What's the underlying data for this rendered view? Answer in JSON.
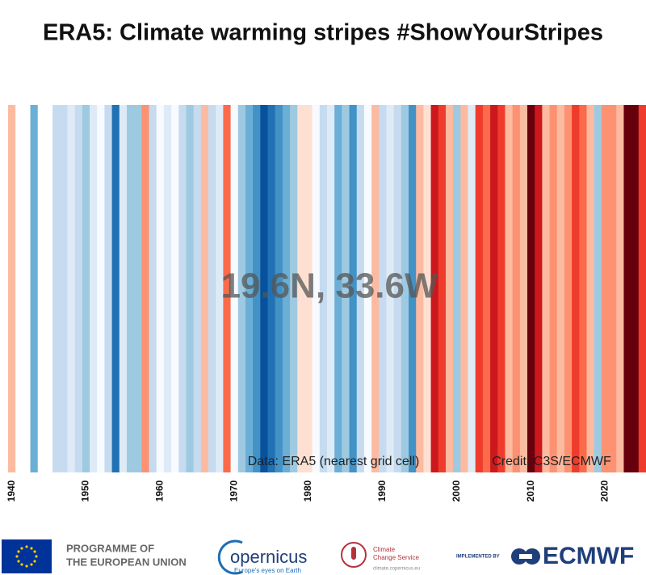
{
  "chart_data": {
    "type": "stripes",
    "title": "ERA5: Climate warming stripes #ShowYourStripes",
    "annotation": "19.6N, 33.6W",
    "source": "Data: ERA5 (nearest grid cell)",
    "credit": "Credit: C3S/ECMWF",
    "x": [
      1940,
      1941,
      1942,
      1943,
      1944,
      1945,
      1946,
      1947,
      1948,
      1949,
      1950,
      1951,
      1952,
      1953,
      1954,
      1955,
      1956,
      1957,
      1958,
      1959,
      1960,
      1961,
      1962,
      1963,
      1964,
      1965,
      1966,
      1967,
      1968,
      1969,
      1970,
      1971,
      1972,
      1973,
      1974,
      1975,
      1976,
      1977,
      1978,
      1979,
      1980,
      1981,
      1982,
      1983,
      1984,
      1985,
      1986,
      1987,
      1988,
      1989,
      1990,
      1991,
      1992,
      1993,
      1994,
      1995,
      1996,
      1997,
      1998,
      1999,
      2000,
      2001,
      2002,
      2003,
      2004,
      2005,
      2006,
      2007,
      2008,
      2009,
      2010,
      2011,
      2012,
      2013,
      2014,
      2015,
      2016,
      2017,
      2018,
      2019,
      2020,
      2021,
      2022,
      2023,
      2024,
      2025
    ],
    "colors": [
      "#fcbba1",
      "#ffffff",
      "#ffffff",
      "#6baed6",
      "#ffffff",
      "#ffffff",
      "#c6dbef",
      "#c6dbef",
      "#deebf7",
      "#c6dbef",
      "#9ecae1",
      "#deebf7",
      "#f7fbff",
      "#c6dbef",
      "#2171b5",
      "#deebf7",
      "#9ecae1",
      "#9ecae1",
      "#fc9272",
      "#c6dbef",
      "#f7fbff",
      "#deebf7",
      "#f7fbff",
      "#c6dbef",
      "#9ecae1",
      "#c6dbef",
      "#fcbba1",
      "#c6dbef",
      "#deebf7",
      "#fb6a4a",
      "#f7fbff",
      "#9ecae1",
      "#6baed6",
      "#4292c6",
      "#08519c",
      "#2171b5",
      "#4292c6",
      "#6baed6",
      "#9ecae1",
      "#fee0d2",
      "#fee0d2",
      "#f7fbff",
      "#c6dbef",
      "#deebf7",
      "#6baed6",
      "#9ecae1",
      "#4292c6",
      "#c6dbef",
      "#f7fbff",
      "#fcbba1",
      "#c6dbef",
      "#deebf7",
      "#c6dbef",
      "#9ecae1",
      "#4292c6",
      "#fcbba1",
      "#fee0d2",
      "#cb181d",
      "#ef3b2c",
      "#fcbba1",
      "#9ecae1",
      "#fcbba1",
      "#deebf7",
      "#ef3b2c",
      "#fb6a4a",
      "#cb181d",
      "#ef3b2c",
      "#fcbba1",
      "#fc9272",
      "#fcbba1",
      "#67000d",
      "#cb181d",
      "#fcbba1",
      "#fc9272",
      "#fcbba1",
      "#fc9272",
      "#ef3b2c",
      "#fb6a4a",
      "#fcbba1",
      "#9ecae1",
      "#fc9272",
      "#fc9272",
      "#fcbba1",
      "#67000d",
      "#67000d",
      "#ef3b2c"
    ],
    "xlim": [
      1940,
      2026
    ],
    "xticks": [
      1940,
      1950,
      1960,
      1970,
      1980,
      1990,
      2000,
      2010,
      2020
    ]
  },
  "footer": {
    "eu": [
      "PROGRAMME OF",
      "THE EUROPEAN UNION"
    ],
    "copernicus": "opernicus",
    "copernicus_tagline": "Europe's eyes on Earth",
    "c3s": [
      "Climate",
      "Change Service"
    ],
    "c3s_url": "climate.copernicus.eu",
    "implemented": "IMPLEMENTED BY",
    "ecmwf": "ECMWF"
  }
}
